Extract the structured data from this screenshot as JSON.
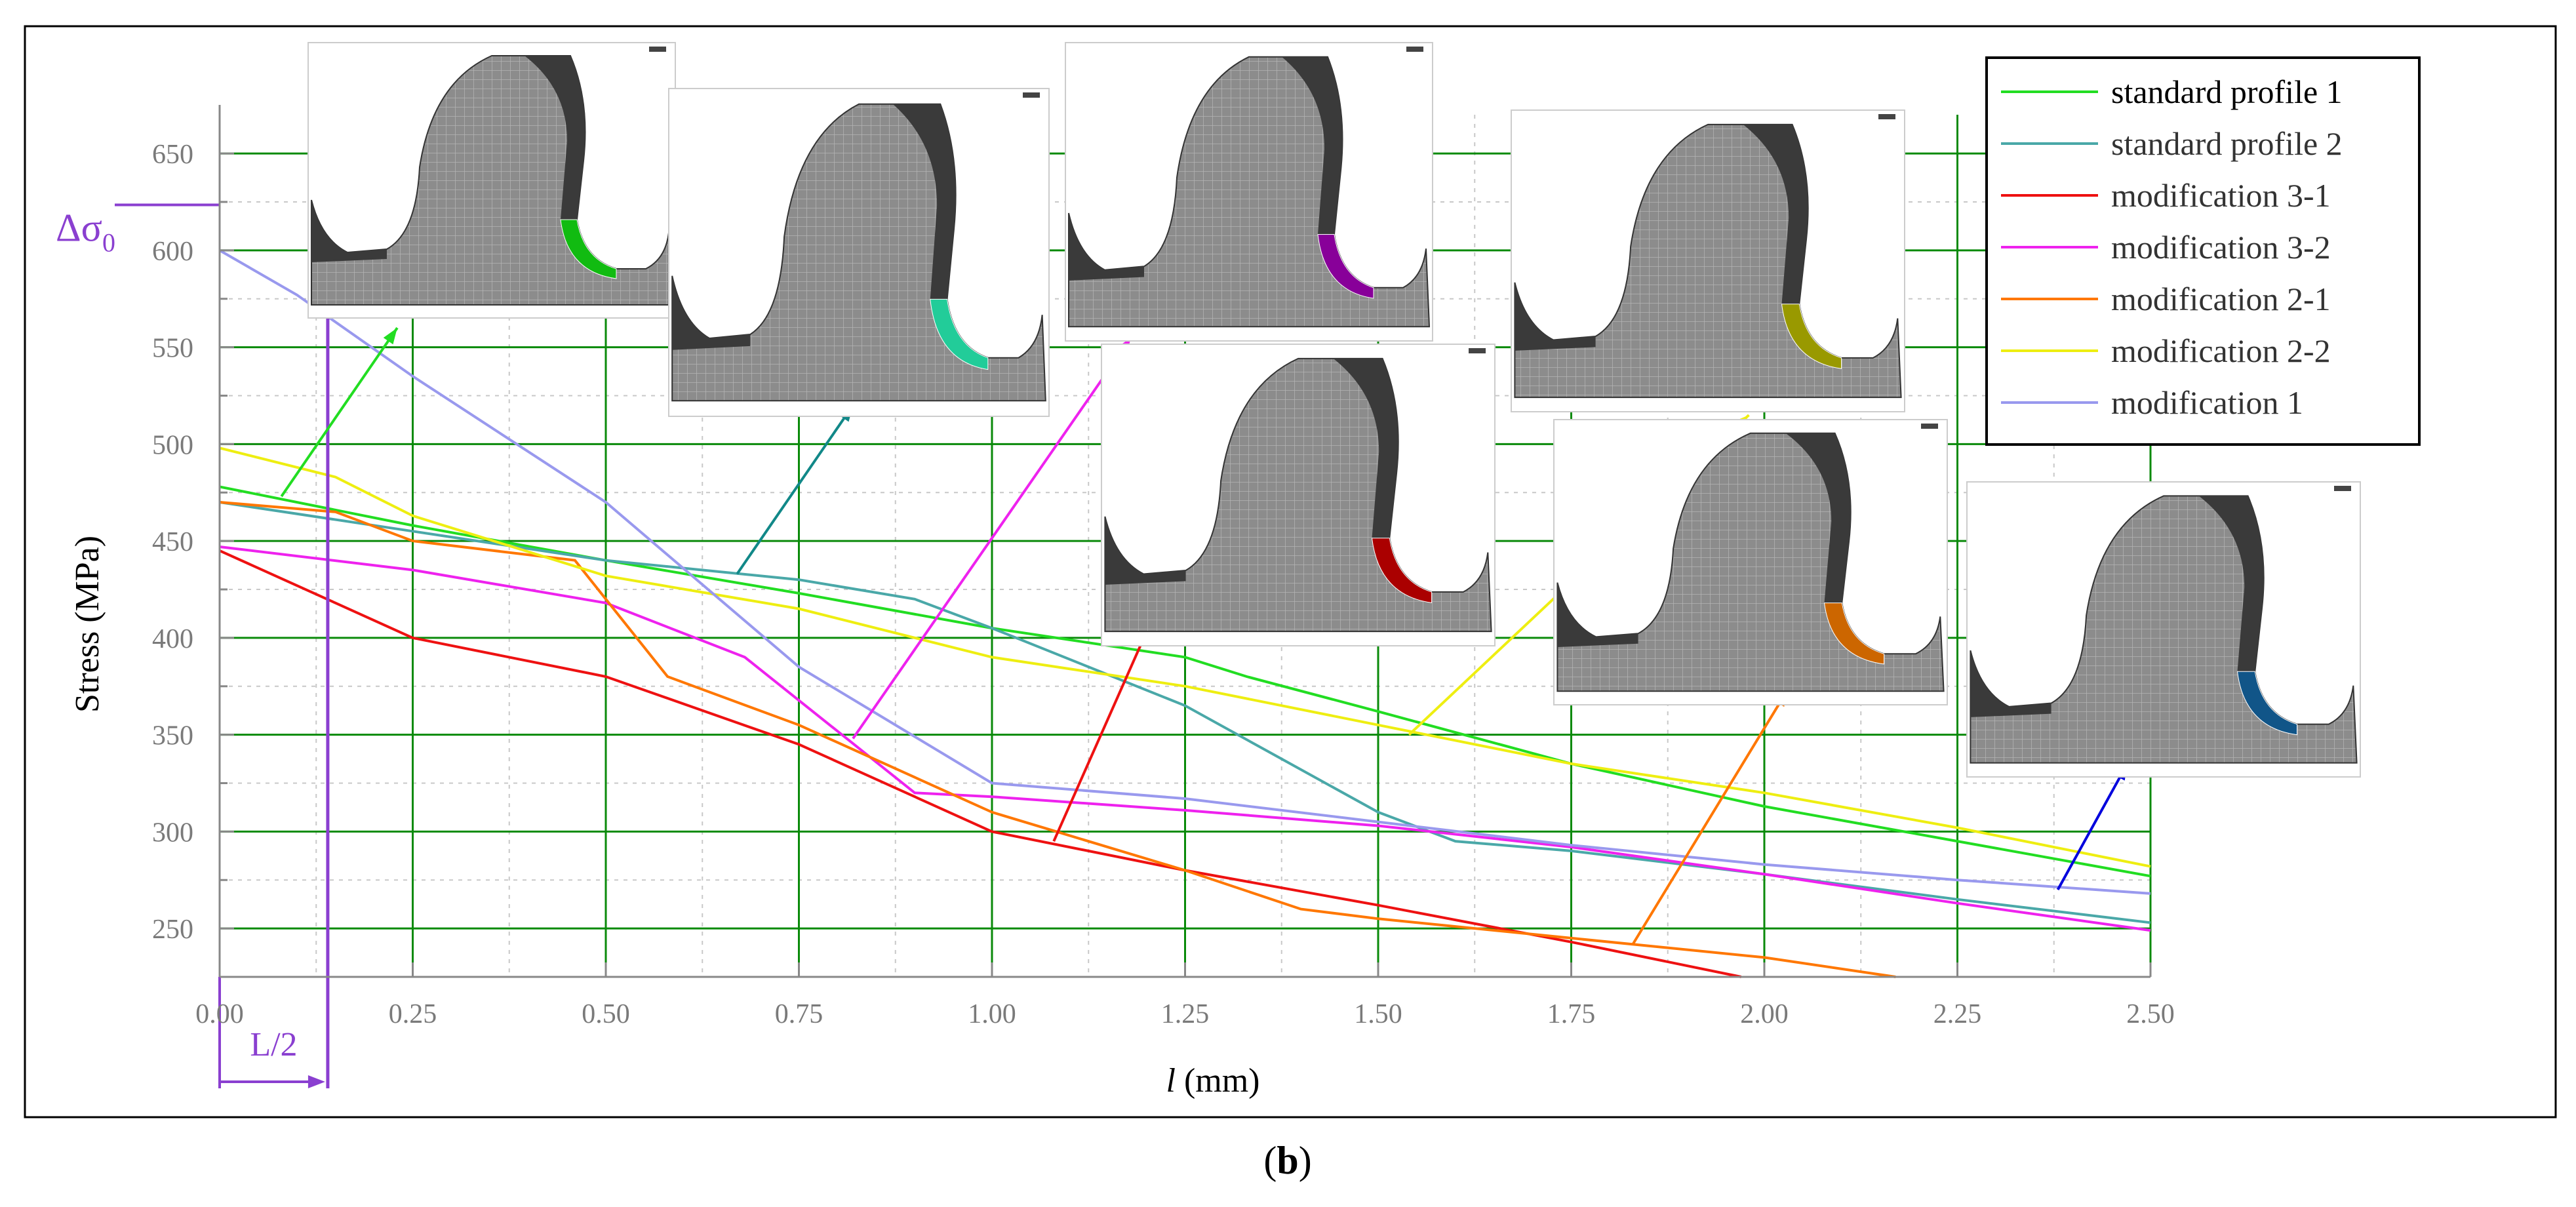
{
  "caption": {
    "open": "(",
    "letter": "b",
    "close": ")"
  },
  "annotations": {
    "delta_sigma_symbol": "Δσ",
    "delta_sigma_sub": "0",
    "delta_sigma_value": 615,
    "half_length_label": "L/2",
    "half_length_value": 0.14,
    "marker_color": "#8a3fd0"
  },
  "chart_data": {
    "type": "line",
    "xlabel": {
      "italic": "l",
      "rest": " (mm)"
    },
    "ylabel": "Stress (MPa)",
    "xlim": [
      0,
      2.5
    ],
    "ylim": [
      225,
      670
    ],
    "xticks": [
      "0.00",
      "0.25",
      "0.50",
      "0.75",
      "1.00",
      "1.25",
      "1.50",
      "1.75",
      "2.00",
      "2.25",
      "2.50"
    ],
    "yticks": [
      "250",
      "300",
      "350",
      "400",
      "450",
      "500",
      "550",
      "600",
      "650"
    ],
    "grid": true,
    "legend_position": "top-right",
    "series": [
      {
        "name": "standard profile 1",
        "color": "#22dd22",
        "points": [
          [
            0,
            478
          ],
          [
            0.25,
            458
          ],
          [
            0.5,
            440
          ],
          [
            0.75,
            423
          ],
          [
            1.0,
            405
          ],
          [
            1.25,
            390
          ],
          [
            1.33,
            380
          ],
          [
            1.5,
            362
          ],
          [
            1.75,
            335
          ],
          [
            2.0,
            313
          ],
          [
            2.25,
            295
          ],
          [
            2.5,
            277
          ]
        ]
      },
      {
        "name": "standard profile 2",
        "color": "#4aa8a8",
        "points": [
          [
            0,
            470
          ],
          [
            0.25,
            455
          ],
          [
            0.5,
            440
          ],
          [
            0.75,
            430
          ],
          [
            0.9,
            420
          ],
          [
            1.0,
            405
          ],
          [
            1.25,
            365
          ],
          [
            1.5,
            310
          ],
          [
            1.6,
            295
          ],
          [
            1.75,
            290
          ],
          [
            2.0,
            278
          ],
          [
            2.25,
            265
          ],
          [
            2.5,
            253
          ]
        ]
      },
      {
        "name": "modification 3-1",
        "color": "#ee1111",
        "points": [
          [
            0,
            445
          ],
          [
            0.15,
            418
          ],
          [
            0.25,
            400
          ],
          [
            0.5,
            380
          ],
          [
            0.75,
            345
          ],
          [
            1.0,
            300
          ],
          [
            1.25,
            280
          ],
          [
            1.5,
            262
          ],
          [
            1.75,
            243
          ],
          [
            1.97,
            225
          ]
        ]
      },
      {
        "name": "modification 3-2",
        "color": "#ee22ee",
        "points": [
          [
            0,
            447
          ],
          [
            0.25,
            435
          ],
          [
            0.5,
            418
          ],
          [
            0.68,
            390
          ],
          [
            0.9,
            320
          ],
          [
            1.0,
            318
          ],
          [
            1.25,
            311
          ],
          [
            1.5,
            303
          ],
          [
            1.75,
            292
          ],
          [
            2.0,
            278
          ],
          [
            2.25,
            263
          ],
          [
            2.5,
            249
          ]
        ]
      },
      {
        "name": "modification 2-1",
        "color": "#ff7700",
        "points": [
          [
            0,
            470
          ],
          [
            0.15,
            465
          ],
          [
            0.25,
            450
          ],
          [
            0.46,
            440
          ],
          [
            0.58,
            380
          ],
          [
            0.75,
            355
          ],
          [
            1.0,
            310
          ],
          [
            1.25,
            280
          ],
          [
            1.4,
            260
          ],
          [
            1.5,
            255
          ],
          [
            1.75,
            245
          ],
          [
            2.0,
            235
          ],
          [
            2.17,
            225
          ]
        ]
      },
      {
        "name": "modification 2-2",
        "color": "#eeee11",
        "points": [
          [
            0,
            498
          ],
          [
            0.15,
            483
          ],
          [
            0.25,
            463
          ],
          [
            0.5,
            432
          ],
          [
            0.75,
            415
          ],
          [
            1.0,
            390
          ],
          [
            1.25,
            375
          ],
          [
            1.5,
            355
          ],
          [
            1.75,
            335
          ],
          [
            2.0,
            320
          ],
          [
            2.25,
            302
          ],
          [
            2.5,
            282
          ]
        ]
      },
      {
        "name": "modification 1",
        "color": "#9999ee",
        "points": [
          [
            0,
            600
          ],
          [
            0.1,
            577
          ],
          [
            0.25,
            535
          ],
          [
            0.5,
            470
          ],
          [
            0.75,
            385
          ],
          [
            1.0,
            325
          ],
          [
            1.25,
            317
          ],
          [
            1.5,
            305
          ],
          [
            1.75,
            293
          ],
          [
            2.0,
            283
          ],
          [
            2.25,
            275
          ],
          [
            2.5,
            268
          ]
        ]
      }
    ]
  },
  "insets": [
    {
      "fill": "#11bb11",
      "arrow_color": "#22dd22",
      "arrow_from": [
        0.08,
        473
      ],
      "arrow_to": [
        0.23,
        560
      ]
    },
    {
      "fill": "#22cc99",
      "arrow_color": "#118888",
      "arrow_from": [
        0.67,
        433
      ],
      "arrow_to": [
        0.82,
        520
      ]
    },
    {
      "fill": "#880099",
      "arrow_color": "#ee22ee",
      "arrow_from": [
        0.82,
        348
      ],
      "arrow_to": [
        1.18,
        555
      ]
    },
    {
      "fill": "#aa0000",
      "arrow_color": "#ee1111",
      "arrow_from": [
        1.08,
        295
      ],
      "arrow_to": [
        1.28,
        475
      ]
    },
    {
      "fill": "#999900",
      "arrow_color": "#eeee11",
      "arrow_from": [
        1.54,
        350
      ],
      "arrow_to": [
        1.98,
        515
      ]
    },
    {
      "fill": "#cc6600",
      "arrow_color": "#ff7700",
      "arrow_from": [
        1.83,
        242
      ],
      "arrow_to": [
        2.03,
        373
      ]
    },
    {
      "fill": "#115588",
      "arrow_color": "#0000dd",
      "arrow_from": [
        2.38,
        270
      ],
      "arrow_to": [
        2.47,
        335
      ]
    }
  ]
}
